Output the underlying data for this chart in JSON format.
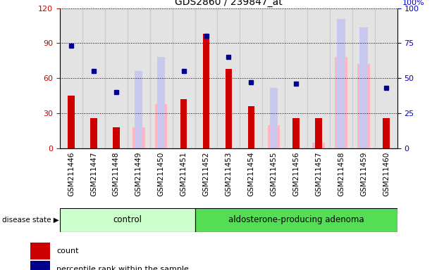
{
  "title": "GDS2860 / 239847_at",
  "samples": [
    "GSM211446",
    "GSM211447",
    "GSM211448",
    "GSM211449",
    "GSM211450",
    "GSM211451",
    "GSM211452",
    "GSM211453",
    "GSM211454",
    "GSM211455",
    "GSM211456",
    "GSM211457",
    "GSM211458",
    "GSM211459",
    "GSM211460"
  ],
  "count_values": [
    45,
    26,
    18,
    0,
    0,
    42,
    98,
    68,
    36,
    0,
    26,
    26,
    0,
    0,
    26
  ],
  "percentile_values": [
    73,
    55,
    40,
    0,
    0,
    55,
    80,
    65,
    47,
    0,
    46,
    0,
    0,
    0,
    43
  ],
  "absent_value_bars": [
    0,
    0,
    0,
    18,
    38,
    0,
    0,
    0,
    0,
    20,
    0,
    5,
    78,
    72,
    0
  ],
  "absent_rank_bars": [
    0,
    0,
    0,
    55,
    65,
    0,
    0,
    0,
    0,
    43,
    0,
    6,
    92,
    86,
    0
  ],
  "control_count": 6,
  "adenoma_count": 9,
  "ylim_left": [
    0,
    120
  ],
  "ylim_right": [
    0,
    100
  ],
  "yticks_left": [
    0,
    30,
    60,
    90,
    120
  ],
  "yticks_right": [
    0,
    25,
    50,
    75,
    100
  ],
  "color_count": "#cc0000",
  "color_percentile": "#00008b",
  "color_absent_value": "#ffb6c1",
  "color_absent_rank": "#c8c8f0",
  "color_control_bg": "#ccffcc",
  "color_adenoma_bg": "#55dd55",
  "color_axis_label_left": "#cc0000",
  "color_axis_label_right": "#0000cc",
  "grid_color": "black",
  "grid_linestyle": "dotted"
}
